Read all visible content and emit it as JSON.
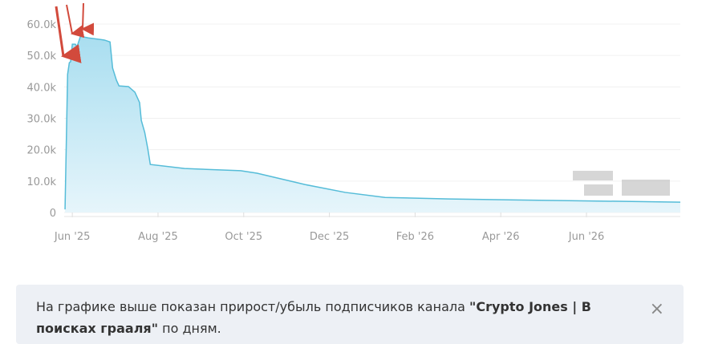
{
  "chart_data": {
    "type": "area",
    "color": "#55bcd8",
    "x": [
      -0.17,
      -0.11,
      -0.07,
      -0.04,
      0,
      0.07,
      0.11,
      0.19,
      0.37,
      0.75,
      0.88,
      0.94,
      1.03,
      1.09,
      1.31,
      1.46,
      1.57,
      1.61,
      1.69,
      1.76,
      1.82,
      2.62,
      3.93,
      4.31,
      5.43,
      6.37,
      7.3,
      8.8,
      11.42,
      14.19
    ],
    "values": [
      1000,
      44000,
      47700,
      48000,
      53600,
      53600,
      52800,
      56100,
      55600,
      54900,
      54300,
      46000,
      42100,
      40300,
      40100,
      38300,
      35000,
      29300,
      25500,
      20400,
      15300,
      14000,
      13300,
      12500,
      8900,
      6400,
      4800,
      4300,
      3800,
      3300
    ],
    "xlim": [
      -0.19,
      14.19
    ],
    "xticks": [
      {
        "value": 0,
        "label": "Jun '25"
      },
      {
        "value": 2,
        "label": "Aug '25"
      },
      {
        "value": 4,
        "label": "Oct '25"
      },
      {
        "value": 6,
        "label": "Dec '25"
      },
      {
        "value": 8,
        "label": "Feb '26"
      },
      {
        "value": 10,
        "label": "Apr '26"
      },
      {
        "value": 12,
        "label": "Jun '26"
      }
    ],
    "ylim": [
      0,
      60000
    ],
    "yticks": [
      0,
      {
        "value": 10000,
        "label": "10.0k"
      },
      {
        "value": 20000,
        "label": "20.0k"
      },
      {
        "value": 30000,
        "label": "30.0k"
      },
      {
        "value": 40000,
        "label": "40.0k"
      },
      {
        "value": 50000,
        "label": "50.0k"
      },
      {
        "value": 60000,
        "label": "60.0k"
      }
    ],
    "grid": true
  },
  "notice": {
    "text_before": "На графике выше показан прирост/убыль подписчиков канала ",
    "text_bold": "\"Crypto Jones | В поисках грааля\"",
    "text_after": " по дням.",
    "close": "×"
  }
}
